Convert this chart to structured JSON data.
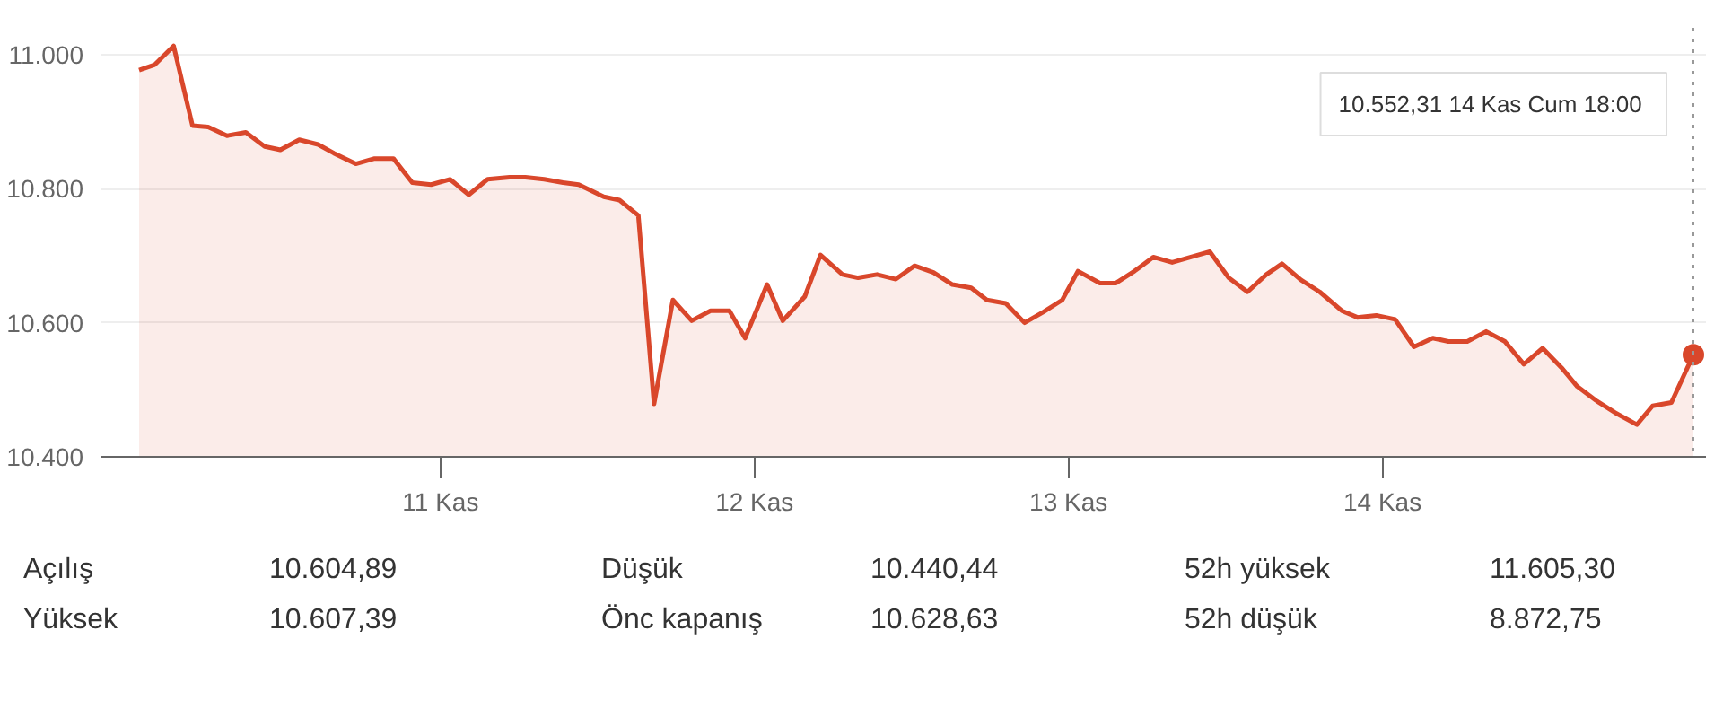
{
  "chart_data": {
    "type": "area",
    "x": [
      10.04,
      10.09,
      10.15,
      10.21,
      10.26,
      10.32,
      10.38,
      10.44,
      10.49,
      10.55,
      10.61,
      10.66,
      10.73,
      10.79,
      10.85,
      10.91,
      10.97,
      11.03,
      11.09,
      11.15,
      11.22,
      11.27,
      11.33,
      11.39,
      11.44,
      11.52,
      11.57,
      11.63,
      11.68,
      11.74,
      11.8,
      11.86,
      11.92,
      11.97,
      12.04,
      12.09,
      12.16,
      12.21,
      12.28,
      12.33,
      12.39,
      12.45,
      12.51,
      12.57,
      12.63,
      12.69,
      12.74,
      12.8,
      12.86,
      12.92,
      12.98,
      13.03,
      13.1,
      13.15,
      13.21,
      13.27,
      13.33,
      13.39,
      13.45,
      13.51,
      13.57,
      13.63,
      13.68,
      13.74,
      13.8,
      13.87,
      13.92,
      13.98,
      14.04,
      14.1,
      14.16,
      14.21,
      14.27,
      14.33,
      14.39,
      14.45,
      14.51,
      14.57,
      14.62,
      14.68,
      14.74,
      14.81,
      14.86,
      14.92,
      14.99
    ],
    "series": [
      {
        "color": "#d9472b",
        "values": [
          10977,
          10985,
          11013,
          10894,
          10892,
          10879,
          10884,
          10863,
          10858,
          10873,
          10866,
          10853,
          10837,
          10845,
          10845,
          10809,
          10806,
          10814,
          10791,
          10814,
          10817,
          10817,
          10814,
          10809,
          10806,
          10788,
          10783,
          10760,
          10479,
          10634,
          10603,
          10618,
          10618,
          10577,
          10657,
          10603,
          10639,
          10701,
          10672,
          10667,
          10672,
          10665,
          10685,
          10675,
          10657,
          10652,
          10634,
          10629,
          10600,
          10616,
          10634,
          10677,
          10659,
          10659,
          10677,
          10698,
          10690,
          10698,
          10706,
          10667,
          10646,
          10672,
          10688,
          10664,
          10646,
          10618,
          10608,
          10611,
          10605,
          10564,
          10577,
          10572,
          10572,
          10587,
          10572,
          10538,
          10562,
          10533,
          10505,
          10484,
          10466,
          10448,
          10476,
          10481,
          10552.31
        ]
      }
    ],
    "xlim": [
      9.92,
      15.03
    ],
    "xticks": [
      {
        "value": 11,
        "label": "11 Kas"
      },
      {
        "value": 12,
        "label": "12 Kas"
      },
      {
        "value": 13,
        "label": "13 Kas"
      },
      {
        "value": 14,
        "label": "14 Kas"
      }
    ],
    "ylim": [
      10400,
      11040
    ],
    "yticks": [
      {
        "value": 10400,
        "label": "10.400"
      },
      {
        "value": 10600,
        "label": "10.600"
      },
      {
        "value": 10800,
        "label": "10.800"
      },
      {
        "value": 11000,
        "label": "11.000"
      }
    ],
    "grid": "y",
    "line_style": "solid",
    "ref_lines": [
      {
        "axis": "x",
        "value": 14.99,
        "label": null,
        "line_style": "dotted",
        "color": "#999999"
      }
    ],
    "annotations": [
      "10.552,31  14 Kas Cum 18:00",
      "Açılış",
      "10.604,89",
      "Düşük",
      "10.440,44",
      "52h yüksek",
      "11.605,30",
      "Yüksek",
      "10.607,39",
      "Önc kapanış",
      "10.628,63",
      "52h düşük",
      "8.872,75"
    ]
  }
}
